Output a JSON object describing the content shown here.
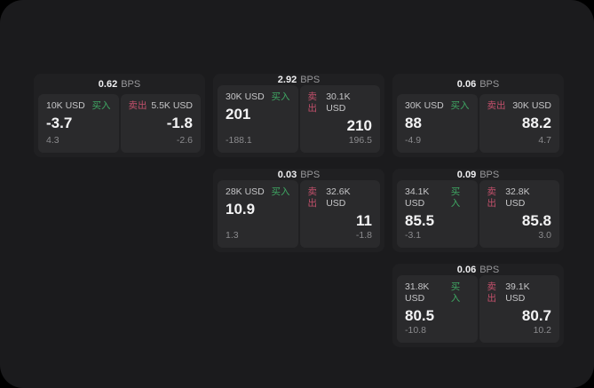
{
  "labels": {
    "bps": "BPS",
    "buy": "买入",
    "sell": "卖出"
  },
  "colors": {
    "buy": "#3fa763",
    "sell": "#c2506b",
    "panel_background": "#1b1b1d",
    "card_background": "#202022",
    "tile_background": "#2a2a2c"
  },
  "cards": [
    {
      "bps": "0.62",
      "buy": {
        "size": "10K USD",
        "value": "-3.7",
        "delta": "4.3"
      },
      "sell": {
        "size": "5.5K USD",
        "value": "-1.8",
        "delta": "-2.6"
      }
    },
    {
      "bps": "2.92",
      "buy": {
        "size": "30K USD",
        "value": "201",
        "delta": "-188.1"
      },
      "sell": {
        "size": "30.1K USD",
        "value": "210",
        "delta": "196.5"
      }
    },
    {
      "bps": "0.06",
      "buy": {
        "size": "30K USD",
        "value": "88",
        "delta": "-4.9"
      },
      "sell": {
        "size": "30K USD",
        "value": "88.2",
        "delta": "4.7"
      }
    },
    {
      "bps": "0.03",
      "buy": {
        "size": "28K USD",
        "value": "10.9",
        "delta": "1.3"
      },
      "sell": {
        "size": "32.6K USD",
        "value": "11",
        "delta": "-1.8"
      }
    },
    {
      "bps": "0.09",
      "buy": {
        "size": "34.1K USD",
        "value": "85.5",
        "delta": "-3.1"
      },
      "sell": {
        "size": "32.8K USD",
        "value": "85.8",
        "delta": "3.0"
      }
    },
    {
      "bps": "0.06",
      "buy": {
        "size": "31.8K USD",
        "value": "80.5",
        "delta": "-10.8"
      },
      "sell": {
        "size": "39.1K USD",
        "value": "80.7",
        "delta": "10.2"
      }
    }
  ]
}
